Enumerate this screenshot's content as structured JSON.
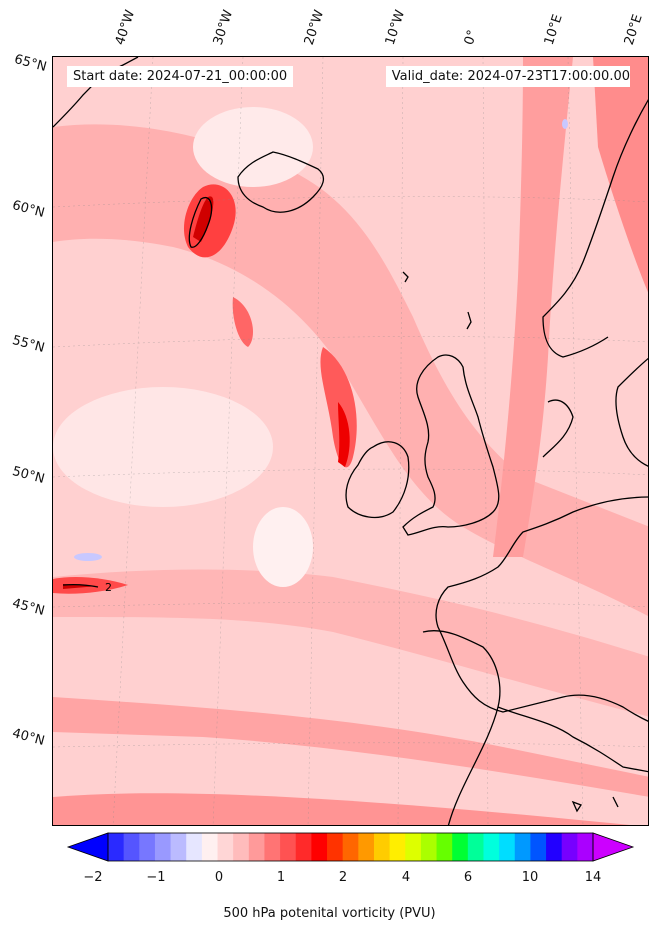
{
  "map": {
    "start_date": "Start date: 2024-07-21_00:00:00",
    "valid_date": "Valid_date: 2024-07-23T17:00:00.00",
    "lon_labels": [
      "40°W",
      "30°W",
      "20°W",
      "10°W",
      "0°",
      "10°E",
      "20°E"
    ],
    "lat_labels": [
      "65°N",
      "60°N",
      "55°N",
      "50°N",
      "45°N",
      "40°N"
    ],
    "contour_annotation": "2",
    "field": "500 hPa potential vorticity",
    "colors": {
      "background_low": "#ffd2d2",
      "mid": "#ff9a9a",
      "high": "#ff3030",
      "max": "#e00000",
      "negative": "#c8c8ff",
      "coast": "#000000"
    }
  },
  "colorbar": {
    "ticks": [
      "−2",
      "−1",
      "0",
      "1",
      "2",
      "4",
      "6",
      "10",
      "14"
    ],
    "title": "500 hPa potenital vorticity (PVU)",
    "colors": [
      "#0000ff",
      "#2a2aff",
      "#5555ff",
      "#7777ff",
      "#9999ff",
      "#bbbbff",
      "#e6e6ff",
      "#fff0f0",
      "#ffd6d6",
      "#ffbcbc",
      "#ff9a9a",
      "#ff7474",
      "#ff5252",
      "#ff2a2a",
      "#ff0000",
      "#ff3300",
      "#ff6600",
      "#ff9900",
      "#ffcc00",
      "#ffee00",
      "#ddff00",
      "#aaff00",
      "#66ff00",
      "#00ff33",
      "#00ff99",
      "#00ffdd",
      "#00ddff",
      "#0099ff",
      "#0055ff",
      "#2200ff",
      "#7700ff",
      "#aa00ff",
      "#cc00ff"
    ]
  }
}
